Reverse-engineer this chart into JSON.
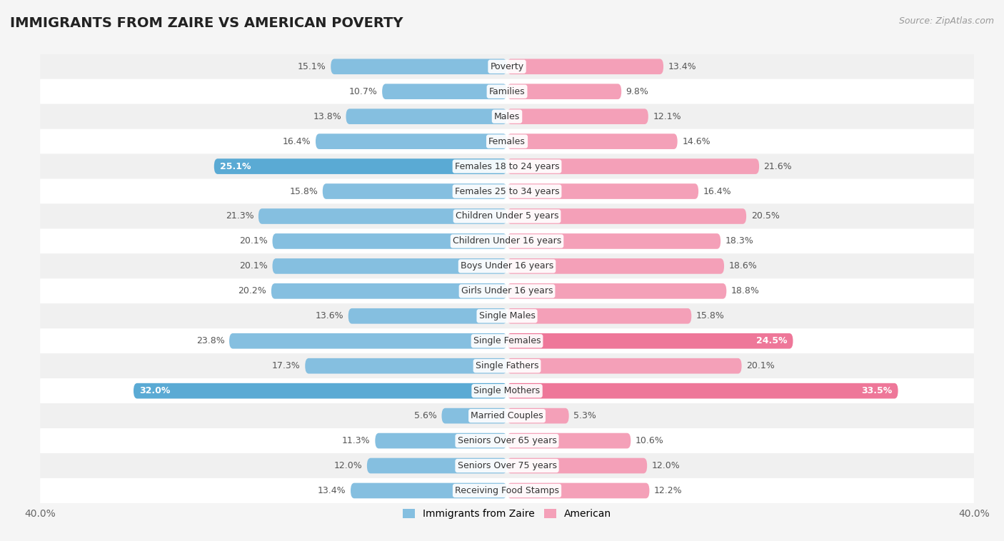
{
  "title": "IMMIGRANTS FROM ZAIRE VS AMERICAN POVERTY",
  "source": "Source: ZipAtlas.com",
  "categories": [
    "Poverty",
    "Families",
    "Males",
    "Females",
    "Females 18 to 24 years",
    "Females 25 to 34 years",
    "Children Under 5 years",
    "Children Under 16 years",
    "Boys Under 16 years",
    "Girls Under 16 years",
    "Single Males",
    "Single Females",
    "Single Fathers",
    "Single Mothers",
    "Married Couples",
    "Seniors Over 65 years",
    "Seniors Over 75 years",
    "Receiving Food Stamps"
  ],
  "zaire_values": [
    15.1,
    10.7,
    13.8,
    16.4,
    25.1,
    15.8,
    21.3,
    20.1,
    20.1,
    20.2,
    13.6,
    23.8,
    17.3,
    32.0,
    5.6,
    11.3,
    12.0,
    13.4
  ],
  "american_values": [
    13.4,
    9.8,
    12.1,
    14.6,
    21.6,
    16.4,
    20.5,
    18.3,
    18.6,
    18.8,
    15.8,
    24.5,
    20.1,
    33.5,
    5.3,
    10.6,
    12.0,
    12.2
  ],
  "zaire_color": "#85bfe0",
  "american_color": "#f4a0b8",
  "zaire_highlight_indices": [
    4,
    13
  ],
  "american_highlight_indices": [
    11,
    13
  ],
  "zaire_highlight_color": "#5aaad4",
  "american_highlight_color": "#ee7799",
  "row_colors": [
    "#f0f0f0",
    "#ffffff"
  ],
  "axis_max": 40.0,
  "bar_height": 0.62,
  "legend_zaire": "Immigrants from Zaire",
  "legend_american": "American",
  "title_fontsize": 14,
  "source_fontsize": 9,
  "value_fontsize": 9,
  "category_fontsize": 9
}
